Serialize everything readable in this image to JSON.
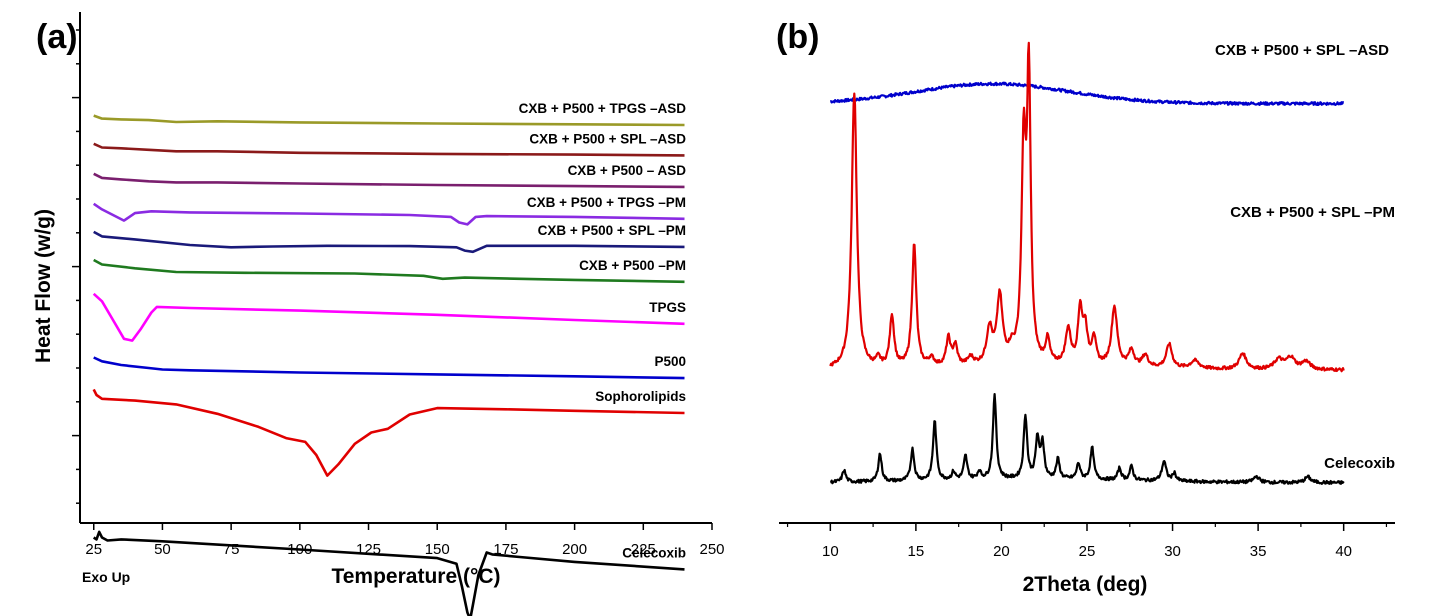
{
  "chart_data": [
    {
      "panel": "(a)",
      "type": "line",
      "xlabel": "Temperature (°C)",
      "ylabel": "Heat Flow (w/g)",
      "annotation": "Exo Up",
      "xlim": [
        20,
        250
      ],
      "xticks": [
        25,
        50,
        75,
        100,
        125,
        150,
        175,
        200,
        225,
        250
      ],
      "y_tick_labels": "none",
      "series": [
        {
          "name": "CXB + P500 + TPGS –ASD",
          "color": "#9a9a28",
          "x": [
            25,
            28,
            35,
            45,
            55,
            70,
            100,
            150,
            200,
            240
          ],
          "y": [
            9.05,
            8.97,
            8.95,
            8.93,
            8.88,
            8.9,
            8.87,
            8.84,
            8.82,
            8.8
          ]
        },
        {
          "name": "CXB + P500 + SPL –ASD",
          "color": "#8b1a1a",
          "x": [
            25,
            28,
            35,
            45,
            55,
            70,
            100,
            150,
            200,
            240
          ],
          "y": [
            8.3,
            8.2,
            8.18,
            8.14,
            8.1,
            8.1,
            8.06,
            8.03,
            8.01,
            7.99
          ]
        },
        {
          "name": "CXB + P500 – ASD",
          "color": "#7a1f6e",
          "x": [
            25,
            28,
            35,
            45,
            55,
            70,
            100,
            150,
            200,
            240
          ],
          "y": [
            7.5,
            7.39,
            7.35,
            7.3,
            7.27,
            7.27,
            7.24,
            7.2,
            7.17,
            7.15
          ]
        },
        {
          "name": "CXB + P500 + TPGS –PM",
          "color": "#8a2be2",
          "x": [
            25,
            28,
            32,
            36,
            40,
            46,
            60,
            100,
            140,
            155,
            158,
            161,
            164,
            168,
            200,
            240
          ],
          "y": [
            6.7,
            6.55,
            6.4,
            6.25,
            6.45,
            6.5,
            6.47,
            6.44,
            6.4,
            6.35,
            6.2,
            6.15,
            6.35,
            6.37,
            6.35,
            6.3
          ]
        },
        {
          "name": "CXB + P500 + SPL –PM",
          "color": "#1a1a7a",
          "x": [
            25,
            28,
            40,
            60,
            75,
            90,
            110,
            140,
            157,
            160,
            163,
            168,
            200,
            240
          ],
          "y": [
            5.95,
            5.83,
            5.75,
            5.6,
            5.54,
            5.56,
            5.58,
            5.57,
            5.54,
            5.45,
            5.42,
            5.58,
            5.58,
            5.55
          ]
        },
        {
          "name": "CXB + P500 –PM",
          "color": "#1f7a1f",
          "x": [
            25,
            28,
            40,
            55,
            80,
            120,
            145,
            152,
            160,
            180,
            200,
            240
          ],
          "y": [
            5.2,
            5.08,
            4.98,
            4.88,
            4.86,
            4.84,
            4.78,
            4.7,
            4.73,
            4.7,
            4.67,
            4.62
          ]
        },
        {
          "name": "TPGS",
          "color": "#ff00ff",
          "x": [
            25,
            28,
            32,
            36,
            39,
            42,
            46,
            48,
            60,
            100,
            150,
            200,
            240
          ],
          "y": [
            4.3,
            4.1,
            3.6,
            3.1,
            3.05,
            3.35,
            3.8,
            3.95,
            3.92,
            3.85,
            3.74,
            3.6,
            3.5
          ]
        },
        {
          "name": "P500",
          "color": "#0000cc",
          "x": [
            25,
            28,
            35,
            45,
            50,
            60,
            100,
            150,
            200,
            240
          ],
          "y": [
            2.6,
            2.5,
            2.4,
            2.32,
            2.28,
            2.26,
            2.2,
            2.15,
            2.1,
            2.05
          ]
        },
        {
          "name": "Sophorolipids",
          "color": "#e00000",
          "x": [
            25,
            26,
            28,
            40,
            55,
            70,
            85,
            95,
            102,
            106,
            110,
            114,
            120,
            126,
            132,
            140,
            150,
            175,
            200,
            240
          ],
          "y": [
            1.75,
            1.6,
            1.5,
            1.45,
            1.35,
            1.1,
            0.75,
            0.45,
            0.35,
            0.0,
            -0.55,
            -0.25,
            0.3,
            0.6,
            0.7,
            1.08,
            1.25,
            1.22,
            1.18,
            1.12
          ]
        },
        {
          "name": "Celecoxib",
          "color": "#000000",
          "x": [
            25,
            26,
            27,
            28,
            30,
            35,
            50,
            100,
            150,
            157,
            159,
            161,
            162,
            163,
            165,
            168,
            170,
            180,
            200,
            240
          ],
          "y": [
            -2.2,
            -2.25,
            -2.05,
            -2.2,
            -2.28,
            -2.25,
            -2.3,
            -2.52,
            -2.75,
            -2.9,
            -3.5,
            -4.2,
            -4.38,
            -4.0,
            -3.2,
            -2.6,
            -2.65,
            -2.72,
            -2.85,
            -3.05
          ]
        }
      ]
    },
    {
      "panel": "(b)",
      "type": "line",
      "xlabel": "2Theta (deg)",
      "xlim": [
        7,
        43
      ],
      "xticks": [
        10,
        15,
        20,
        25,
        30,
        35,
        40
      ],
      "series": [
        {
          "name": "CXB + P500 + SPL –ASD",
          "color": "#0000cc",
          "baseline": 71,
          "profile": "halo",
          "peaks": [
            {
              "x": 19.5,
              "h": 5,
              "w": 4.5
            }
          ]
        },
        {
          "name": "CXB + P500 + SPL –PM",
          "color": "#e00000",
          "baseline": 3.5,
          "profile": "peaks",
          "peaks": [
            {
              "x": 11.4,
              "h": 70,
              "w": 0.18
            },
            {
              "x": 12.8,
              "h": 2,
              "w": 0.15
            },
            {
              "x": 13.6,
              "h": 13,
              "w": 0.15
            },
            {
              "x": 14.9,
              "h": 31,
              "w": 0.15
            },
            {
              "x": 15.9,
              "h": 2,
              "w": 0.2
            },
            {
              "x": 16.9,
              "h": 7,
              "w": 0.15
            },
            {
              "x": 17.3,
              "h": 5,
              "w": 0.15
            },
            {
              "x": 18.2,
              "h": 2,
              "w": 0.2
            },
            {
              "x": 19.3,
              "h": 9,
              "w": 0.2
            },
            {
              "x": 19.9,
              "h": 17,
              "w": 0.2
            },
            {
              "x": 20.6,
              "h": 3,
              "w": 0.2
            },
            {
              "x": 21.3,
              "h": 53,
              "w": 0.15
            },
            {
              "x": 21.6,
              "h": 71,
              "w": 0.13
            },
            {
              "x": 22.7,
              "h": 6,
              "w": 0.15
            },
            {
              "x": 23.9,
              "h": 9,
              "w": 0.18
            },
            {
              "x": 24.6,
              "h": 14,
              "w": 0.15
            },
            {
              "x": 24.9,
              "h": 9,
              "w": 0.15
            },
            {
              "x": 25.4,
              "h": 7,
              "w": 0.15
            },
            {
              "x": 26.6,
              "h": 15,
              "w": 0.2
            },
            {
              "x": 27.6,
              "h": 4,
              "w": 0.2
            },
            {
              "x": 28.4,
              "h": 3,
              "w": 0.2
            },
            {
              "x": 29.8,
              "h": 6,
              "w": 0.2
            },
            {
              "x": 31.3,
              "h": 2,
              "w": 0.3
            },
            {
              "x": 34.1,
              "h": 4,
              "w": 0.25
            },
            {
              "x": 36.2,
              "h": 2.5,
              "w": 0.3
            },
            {
              "x": 36.9,
              "h": 3,
              "w": 0.3
            },
            {
              "x": 37.8,
              "h": 2,
              "w": 0.3
            }
          ]
        },
        {
          "name": "Celecoxib",
          "color": "#000000",
          "baseline": -25,
          "profile": "peaks",
          "peaks": [
            {
              "x": 10.8,
              "h": 3,
              "w": 0.12
            },
            {
              "x": 12.9,
              "h": 7,
              "w": 0.12
            },
            {
              "x": 14.8,
              "h": 8,
              "w": 0.12
            },
            {
              "x": 16.1,
              "h": 15,
              "w": 0.12
            },
            {
              "x": 17.2,
              "h": 2,
              "w": 0.12
            },
            {
              "x": 17.9,
              "h": 6,
              "w": 0.12
            },
            {
              "x": 18.7,
              "h": 2,
              "w": 0.12
            },
            {
              "x": 19.6,
              "h": 21,
              "w": 0.12
            },
            {
              "x": 21.4,
              "h": 16,
              "w": 0.12
            },
            {
              "x": 22.1,
              "h": 10,
              "w": 0.12
            },
            {
              "x": 22.4,
              "h": 9,
              "w": 0.12
            },
            {
              "x": 23.3,
              "h": 5,
              "w": 0.12
            },
            {
              "x": 24.5,
              "h": 4,
              "w": 0.12
            },
            {
              "x": 25.3,
              "h": 8,
              "w": 0.12
            },
            {
              "x": 26.9,
              "h": 3,
              "w": 0.12
            },
            {
              "x": 27.6,
              "h": 3.5,
              "w": 0.12
            },
            {
              "x": 29.5,
              "h": 5,
              "w": 0.15
            },
            {
              "x": 30.1,
              "h": 2,
              "w": 0.12
            },
            {
              "x": 34.9,
              "h": 1.5,
              "w": 0.2
            },
            {
              "x": 37.9,
              "h": 1.5,
              "w": 0.2
            }
          ]
        }
      ]
    }
  ]
}
